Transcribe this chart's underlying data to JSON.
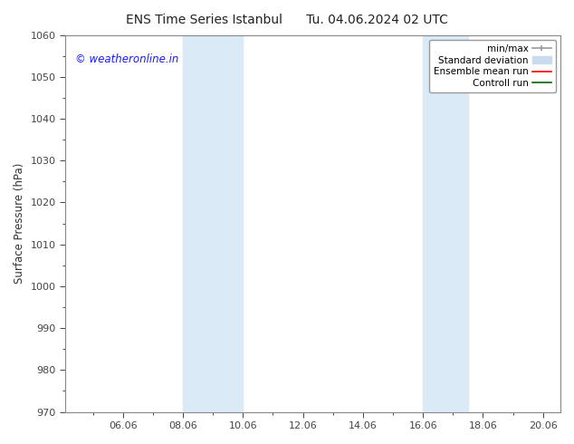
{
  "title_left": "ENS Time Series Istanbul",
  "title_right": "Tu. 04.06.2024 02 UTC",
  "ylabel": "Surface Pressure (hPa)",
  "ylim": [
    970,
    1060
  ],
  "yticks": [
    970,
    980,
    990,
    1000,
    1010,
    1020,
    1030,
    1040,
    1050,
    1060
  ],
  "xlim": [
    4.08,
    20.58
  ],
  "xtick_positions": [
    6.0,
    8.0,
    10.0,
    12.0,
    14.0,
    16.0,
    18.0,
    20.0
  ],
  "xtick_labels": [
    "06.06",
    "08.06",
    "10.06",
    "12.06",
    "14.06",
    "16.06",
    "18.06",
    "20.06"
  ],
  "shaded_bands": [
    {
      "xmin": 8.0,
      "xmax": 10.0,
      "color": "#daeaf7",
      "alpha": 1.0
    },
    {
      "xmin": 16.0,
      "xmax": 17.5,
      "color": "#daeaf7",
      "alpha": 1.0
    }
  ],
  "watermark": "© weatheronline.in",
  "watermark_color": "#1a1aff",
  "watermark_fontsize": 8.5,
  "bg_color": "#ffffff",
  "legend_items": [
    {
      "label": "min/max",
      "color": "#999999",
      "lw": 1.2,
      "type": "errorbar"
    },
    {
      "label": "Standard deviation",
      "color": "#c8dcee",
      "lw": 8,
      "type": "patch"
    },
    {
      "label": "Ensemble mean run",
      "color": "#ff0000",
      "lw": 1.2,
      "type": "line"
    },
    {
      "label": "Controll run",
      "color": "#006600",
      "lw": 1.2,
      "type": "line"
    }
  ],
  "font_size_title": 10,
  "font_size_axis": 8.5,
  "font_size_ticks": 8,
  "font_size_legend": 7.5,
  "spine_color": "#888888",
  "tick_color": "#444444"
}
